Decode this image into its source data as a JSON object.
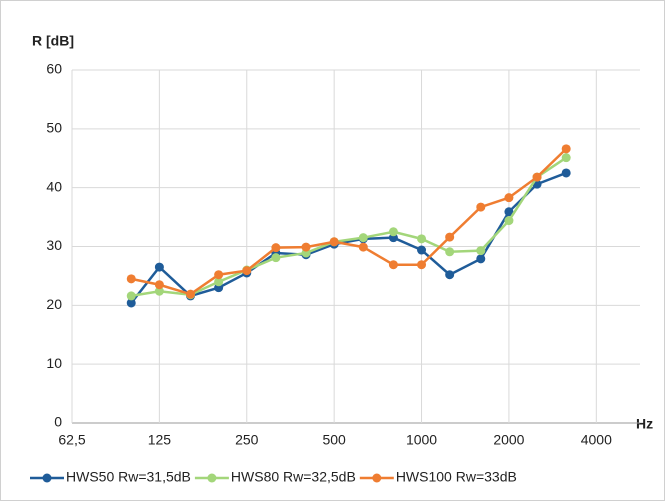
{
  "chart_data": {
    "type": "line",
    "y_label": "R [dB]",
    "x_label": "Hz",
    "xscale": "log",
    "x": [
      100,
      125,
      160,
      200,
      250,
      315,
      400,
      500,
      630,
      800,
      1000,
      1250,
      1600,
      2000,
      2500,
      3150
    ],
    "xlim": [
      62.5,
      5657
    ],
    "xticks": [
      {
        "value": 62.5,
        "label": "62,5"
      },
      125,
      250,
      500,
      1000,
      2000,
      4000
    ],
    "ylim": [
      0,
      60
    ],
    "yticks": [
      0,
      10,
      20,
      30,
      40,
      50,
      60
    ],
    "grid": true,
    "legend": "bottom",
    "series": [
      {
        "name": "HWS50 Rw=31,5dB",
        "color": "#1f5c99",
        "values": [
          20.4,
          26.5,
          21.6,
          23.0,
          25.5,
          28.9,
          28.6,
          30.4,
          31.3,
          31.5,
          29.4,
          25.2,
          27.9,
          35.9,
          40.6,
          42.5
        ]
      },
      {
        "name": "HWS80 Rw=32,5dB",
        "color": "#a3d67a",
        "values": [
          21.6,
          22.4,
          21.8,
          24.0,
          26.0,
          28.1,
          28.9,
          30.8,
          31.5,
          32.5,
          31.3,
          29.1,
          29.3,
          34.4,
          41.8,
          45.1
        ]
      },
      {
        "name": "HWS100 Rw=33dB",
        "color": "#ef7d31",
        "values": [
          24.5,
          23.5,
          21.9,
          25.2,
          25.9,
          29.8,
          29.9,
          30.8,
          29.9,
          26.9,
          26.9,
          31.6,
          36.7,
          38.3,
          41.8,
          46.6
        ]
      }
    ]
  }
}
